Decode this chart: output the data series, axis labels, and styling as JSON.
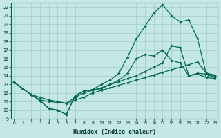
{
  "xlabel": "Humidex (Indice chaleur)",
  "xlim": [
    -0.3,
    23.3
  ],
  "ylim": [
    9,
    22.5
  ],
  "xticks": [
    0,
    1,
    2,
    3,
    4,
    5,
    6,
    7,
    8,
    9,
    10,
    11,
    12,
    13,
    14,
    15,
    16,
    17,
    18,
    19,
    20,
    21,
    22,
    23
  ],
  "yticks": [
    9,
    10,
    11,
    12,
    13,
    14,
    15,
    16,
    17,
    18,
    19,
    20,
    21,
    22
  ],
  "bg_color": "#c5e8e5",
  "grid_color": "#9eccc8",
  "line_color": "#006655",
  "line1_y": [
    13.3,
    12.5,
    11.8,
    11.1,
    10.2,
    10.0,
    9.5,
    11.7,
    12.2,
    12.4,
    13.0,
    13.5,
    14.3,
    16.2,
    18.3,
    19.8,
    21.3,
    22.3,
    21.0,
    20.3,
    20.5,
    18.3,
    14.2,
    13.8
  ],
  "line2_y": [
    13.3,
    12.5,
    11.8,
    11.1,
    10.2,
    10.0,
    9.5,
    11.7,
    12.2,
    12.4,
    12.5,
    13.0,
    13.5,
    14.3,
    16.0,
    16.5,
    16.3,
    17.0,
    15.8,
    15.5,
    14.0,
    14.2,
    13.8,
    13.7
  ],
  "line3_y": [
    13.3,
    12.5,
    11.8,
    11.2,
    11.0,
    10.9,
    10.8,
    11.5,
    12.0,
    12.3,
    12.6,
    13.0,
    13.3,
    13.7,
    14.0,
    14.5,
    15.0,
    15.5,
    17.5,
    17.3,
    14.0,
    14.3,
    14.2,
    14.0
  ],
  "line4_y": [
    13.3,
    12.5,
    11.8,
    11.5,
    11.2,
    11.0,
    10.8,
    11.2,
    11.5,
    12.0,
    12.3,
    12.6,
    12.9,
    13.2,
    13.5,
    13.8,
    14.1,
    14.4,
    14.7,
    15.0,
    15.3,
    15.6,
    14.3,
    14.1
  ],
  "triangle_x": 22,
  "triangle_y": 14.0
}
